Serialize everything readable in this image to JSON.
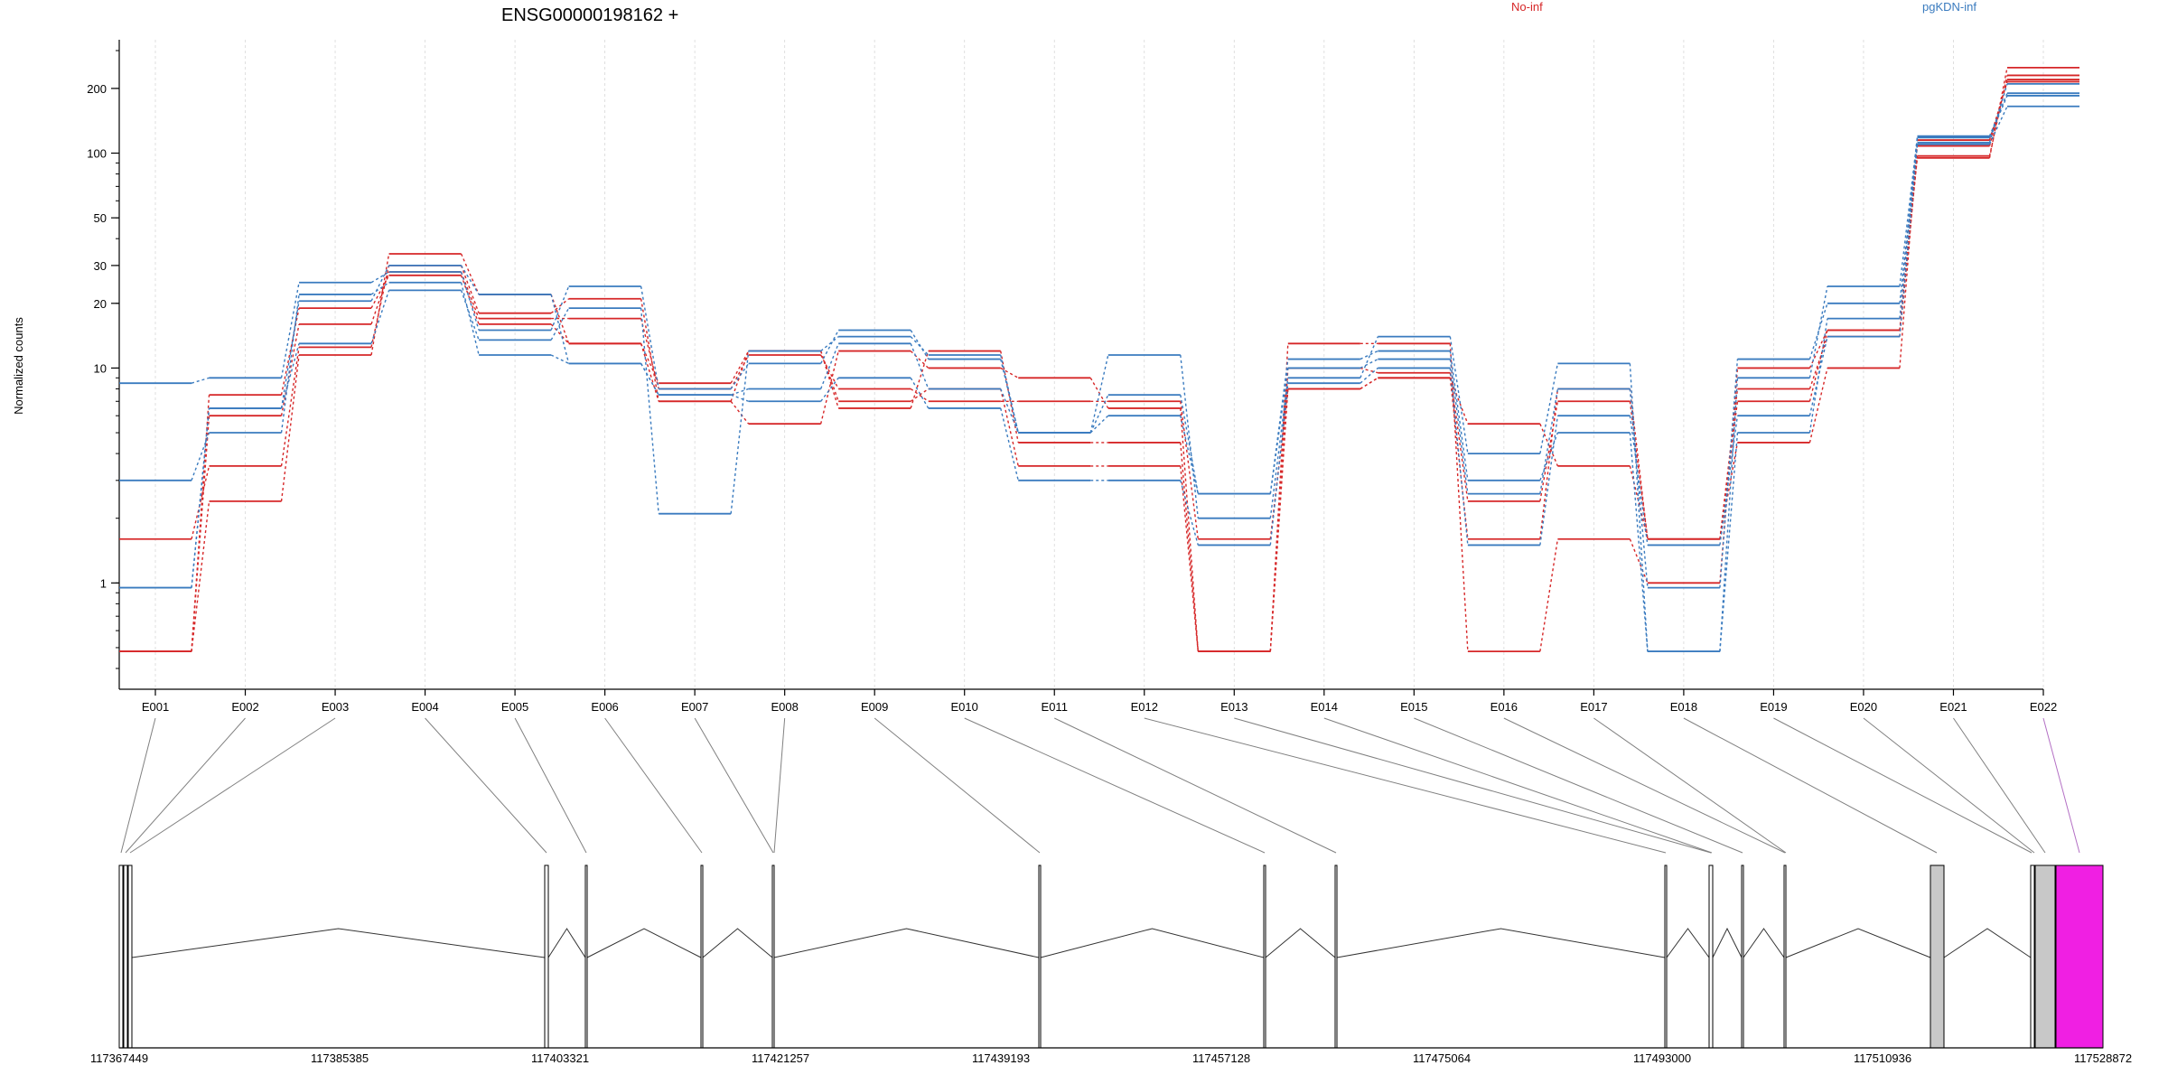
{
  "chart_data": {
    "type": "line",
    "title": "ENSG00000198162 +",
    "ylabel": "Normalized counts",
    "xlabel": "",
    "y_scale": "log",
    "ylim": [
      0.4,
      300
    ],
    "y_ticks": [
      1,
      10,
      20,
      30,
      50,
      100,
      200
    ],
    "grid": true,
    "legend_placement": "top",
    "legend": [
      {
        "name": "No-inf",
        "color": "#d62728"
      },
      {
        "name": "pgKDN-inf",
        "color": "#3a7bbf"
      }
    ],
    "categories": [
      "E001",
      "E002",
      "E003",
      "E004",
      "E005",
      "E006",
      "E007",
      "E008",
      "E009",
      "E010",
      "E011",
      "E012",
      "E013",
      "E014",
      "E015",
      "E016",
      "E017",
      "E018",
      "E019",
      "E020",
      "E021",
      "E022"
    ],
    "series": [
      {
        "group": "No-inf",
        "color": "#d62728",
        "values": [
          0.48,
          2.4,
          11.5,
          34.0,
          22.0,
          13.0,
          8.5,
          12.0,
          7.0,
          8.0,
          3.5,
          3.5,
          0.48,
          13.0,
          13.0,
          0.48,
          1.6,
          1.0,
          10.0,
          15.0,
          95.0,
          250.0
        ]
      },
      {
        "group": "No-inf",
        "color": "#d62728",
        "values": [
          1.6,
          3.5,
          12.5,
          30.0,
          18.0,
          21.0,
          7.0,
          5.5,
          12.0,
          10.0,
          9.0,
          6.5,
          0.48,
          8.0,
          9.0,
          5.5,
          3.5,
          1.6,
          8.0,
          14.0,
          97.0,
          230.0
        ]
      },
      {
        "group": "No-inf",
        "color": "#d62728",
        "values": [
          0.48,
          6.0,
          16.0,
          28.0,
          17.0,
          17.0,
          8.0,
          11.5,
          8.0,
          7.0,
          7.0,
          7.0,
          1.6,
          8.0,
          9.0,
          1.6,
          8.0,
          1.6,
          7.0,
          15.0,
          108.0,
          220.0
        ]
      },
      {
        "group": "No-inf",
        "color": "#d62728",
        "values": [
          0.48,
          7.5,
          19.0,
          27.0,
          16.0,
          13.0,
          7.0,
          12.0,
          6.5,
          12.0,
          4.5,
          4.5,
          0.48,
          10.0,
          9.5,
          2.4,
          7.0,
          1.6,
          4.5,
          10.0,
          115.0,
          215.0
        ]
      },
      {
        "group": "pgKDN-inf",
        "color": "#3a7bbf",
        "values": [
          8.5,
          9.0,
          25.0,
          28.0,
          15.0,
          24.0,
          8.0,
          10.5,
          15.0,
          11.0,
          5.0,
          11.5,
          2.0,
          9.0,
          14.0,
          4.0,
          10.5,
          0.48,
          9.0,
          24.0,
          118.0,
          185.0
        ]
      },
      {
        "group": "pgKDN-inf",
        "color": "#3a7bbf",
        "values": [
          3.0,
          5.0,
          22.0,
          25.0,
          11.5,
          10.5,
          7.5,
          7.0,
          9.0,
          6.5,
          3.0,
          3.0,
          1.5,
          8.5,
          10.0,
          1.5,
          6.0,
          1.5,
          6.0,
          14.0,
          110.0,
          165.0
        ]
      },
      {
        "group": "pgKDN-inf",
        "color": "#3a7bbf",
        "values": [
          0.95,
          6.5,
          13.0,
          23.0,
          13.5,
          19.0,
          2.1,
          12.0,
          14.0,
          11.5,
          5.0,
          7.5,
          2.6,
          11.0,
          12.0,
          3.0,
          5.0,
          0.48,
          5.0,
          17.0,
          120.0,
          190.0
        ]
      },
      {
        "group": "pgKDN-inf",
        "color": "#3a7bbf",
        "values": [
          0.95,
          6.5,
          20.5,
          30.0,
          22.0,
          10.5,
          7.5,
          8.0,
          13.0,
          8.0,
          5.0,
          6.0,
          2.6,
          10.0,
          11.0,
          2.6,
          8.0,
          0.95,
          11.0,
          20.0,
          112.0,
          210.0
        ]
      }
    ]
  },
  "gene_model": {
    "coordinate_ticks": [
      "117367449",
      "117385385",
      "117403321",
      "117421257",
      "117439193",
      "117457128",
      "117475064",
      "117493000",
      "117510936",
      "117528872"
    ]
  },
  "colors": {
    "no_inf": "#d62728",
    "pgkdn_inf": "#3a7bbf",
    "highlighted_exon": "#f01fe3",
    "gray_exon": "#c8c8c8"
  }
}
